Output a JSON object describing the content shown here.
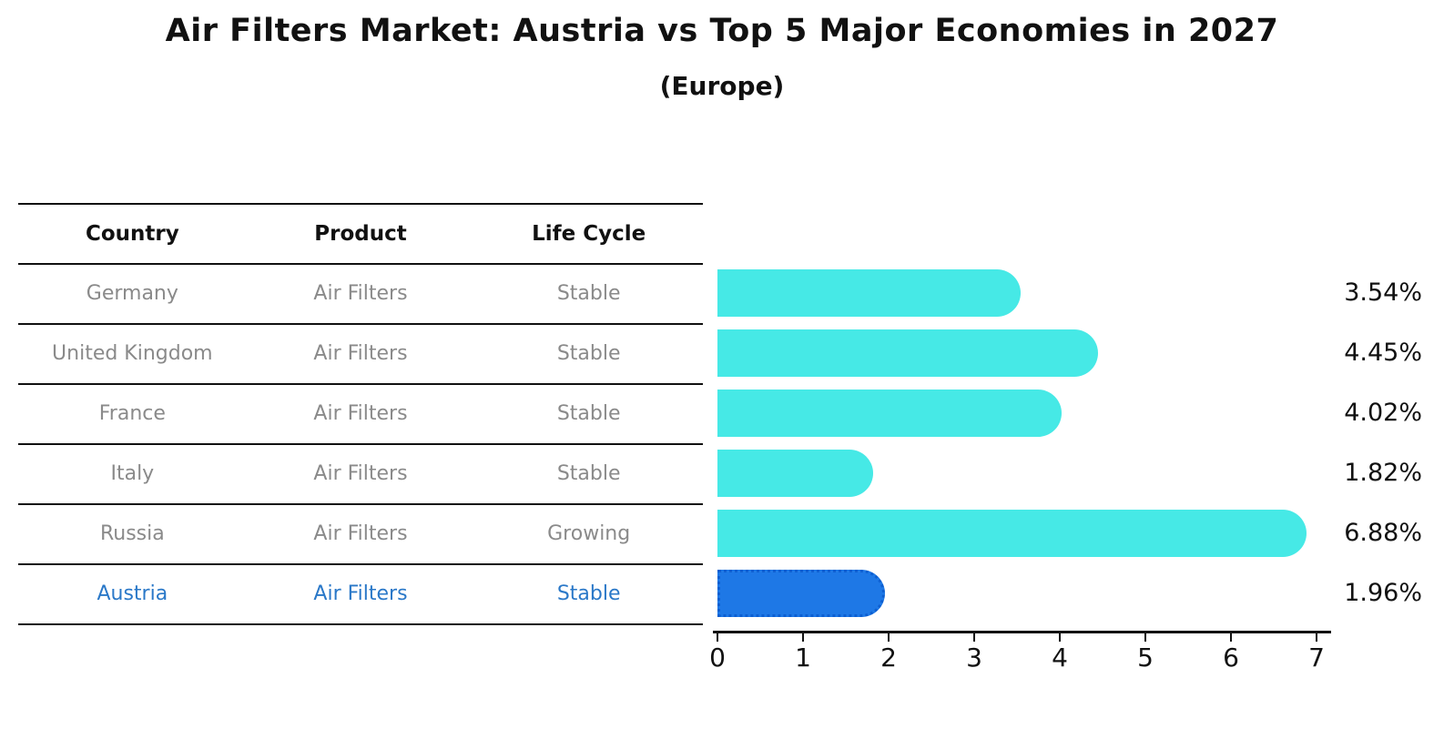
{
  "title": "Air Filters Market: Austria vs Top 5 Major Economies in 2027",
  "subtitle": "(Europe)",
  "table": {
    "headers": {
      "country": "Country",
      "product": "Product",
      "life_cycle": "Life Cycle"
    },
    "rows": [
      {
        "country": "Germany",
        "product": "Air Filters",
        "life_cycle": "Stable",
        "highlighted": false
      },
      {
        "country": "United Kingdom",
        "product": "Air Filters",
        "life_cycle": "Stable",
        "highlighted": false
      },
      {
        "country": "France",
        "product": "Air Filters",
        "life_cycle": "Stable",
        "highlighted": false
      },
      {
        "country": "Italy",
        "product": "Air Filters",
        "life_cycle": "Stable",
        "highlighted": false
      },
      {
        "country": "Russia",
        "product": "Air Filters",
        "life_cycle": "Growing",
        "highlighted": false
      },
      {
        "country": "Austria",
        "product": "Air Filters",
        "life_cycle": "Stable",
        "highlighted": true
      }
    ]
  },
  "chart_data": {
    "type": "bar",
    "orientation": "horizontal",
    "title": "Air Filters Market: Austria vs Top 5 Major Economies in 2027 (Europe)",
    "categories": [
      "Germany",
      "United Kingdom",
      "France",
      "Italy",
      "Russia",
      "Austria"
    ],
    "values": [
      3.54,
      4.45,
      4.02,
      1.82,
      6.88,
      1.96
    ],
    "value_labels": [
      "3.54%",
      "4.45%",
      "4.02%",
      "1.82%",
      "6.88%",
      "1.96%"
    ],
    "highlight_index": 5,
    "xlabel": "",
    "ylabel": "",
    "axis": {
      "min": 0,
      "max": 7,
      "ticks": [
        "0",
        "1",
        "2",
        "3",
        "4",
        "5",
        "6",
        "7"
      ]
    },
    "grid": false,
    "legend": false
  },
  "colors": {
    "bar_fill": "#46e9e6",
    "highlight_fill": "#1e78e6",
    "highlight_border": "#0d5fd1",
    "highlight_text": "#2a78c8",
    "row_text": "#8a8a8a",
    "header_text": "#111111",
    "value_text": "#111111",
    "line": "#111111"
  }
}
